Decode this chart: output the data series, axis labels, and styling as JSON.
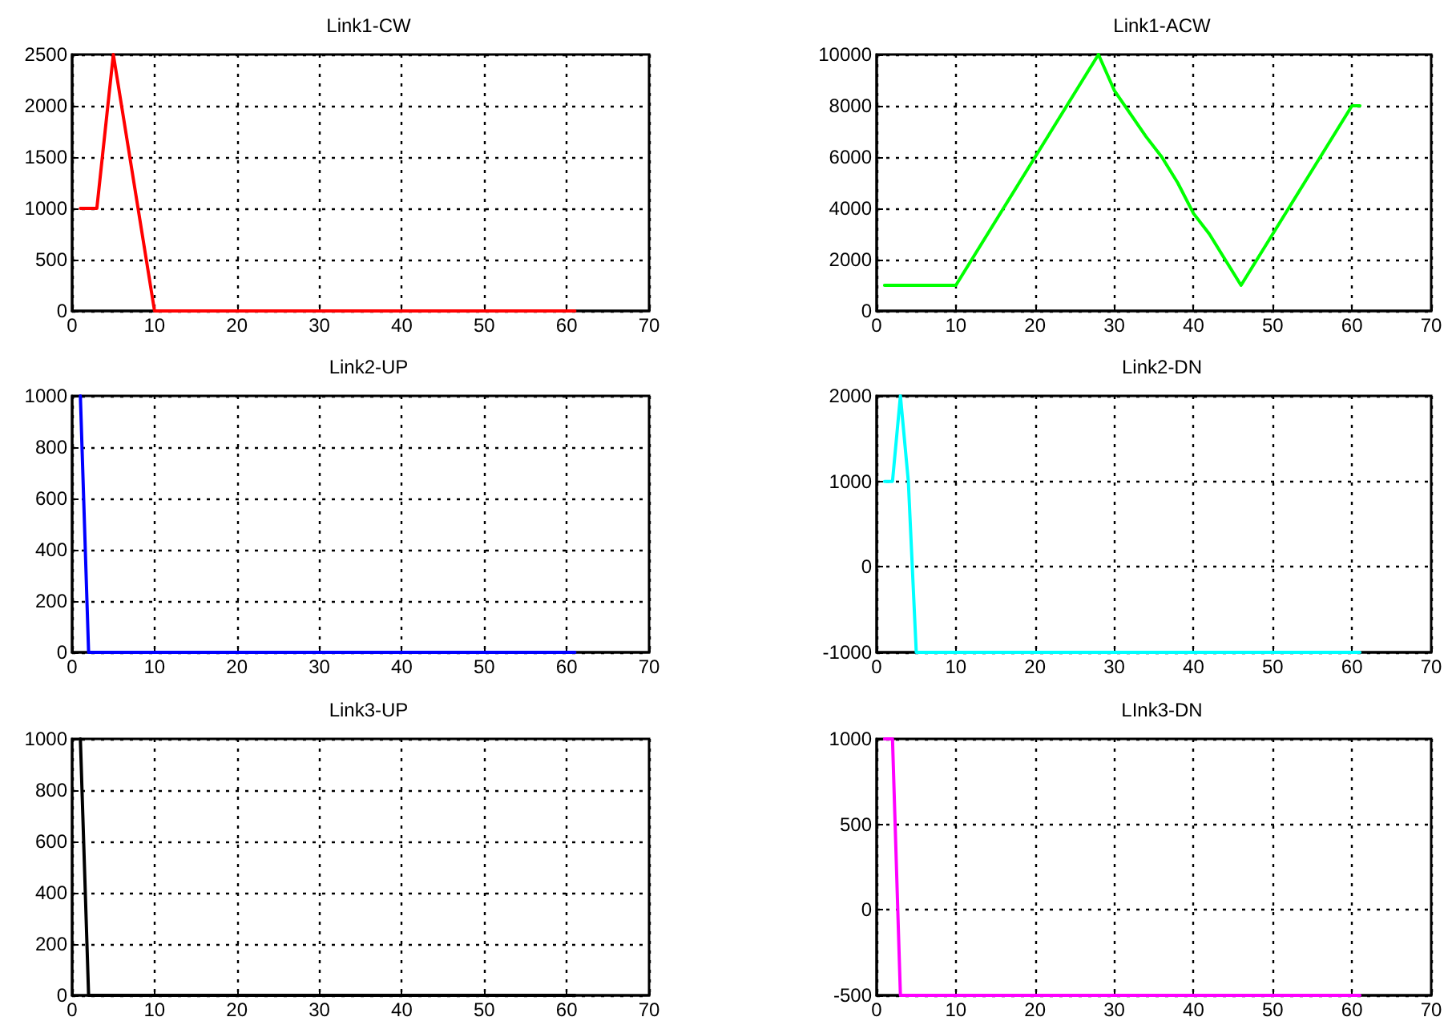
{
  "chart_data": [
    {
      "type": "line",
      "title": "Link1-CW",
      "grid": true,
      "marker": "none",
      "line_style": "solid",
      "xlim": [
        0,
        70
      ],
      "xticks": [
        0,
        10,
        20,
        30,
        40,
        50,
        60,
        70
      ],
      "ylim": [
        0,
        2500
      ],
      "yticks": [
        0,
        500,
        1000,
        1500,
        2000,
        2500
      ],
      "series": [
        {
          "color": "#ff0000",
          "x": [
            1,
            3,
            5,
            6,
            7,
            8,
            9,
            10,
            61
          ],
          "values": [
            1000,
            1000,
            2500,
            2000,
            1500,
            1000,
            500,
            0,
            0
          ]
        }
      ]
    },
    {
      "type": "line",
      "title": "Link1-ACW",
      "grid": true,
      "marker": "none",
      "line_style": "solid",
      "xlim": [
        0,
        70
      ],
      "xticks": [
        0,
        10,
        20,
        30,
        40,
        50,
        60,
        70
      ],
      "ylim": [
        0,
        10000
      ],
      "yticks": [
        0,
        2000,
        4000,
        6000,
        8000,
        10000
      ],
      "series": [
        {
          "color": "#00ff00",
          "x": [
            1,
            10,
            11,
            13,
            15,
            16,
            18,
            20,
            22,
            24,
            26,
            28,
            30,
            32,
            34,
            36,
            38,
            40,
            42,
            43,
            45,
            46,
            48,
            50,
            52,
            54,
            56,
            58,
            60,
            61
          ],
          "values": [
            1000,
            1000,
            1500,
            2500,
            3500,
            4000,
            5000,
            6000,
            7000,
            8000,
            9000,
            10000,
            8600,
            7700,
            6800,
            6000,
            5000,
            3800,
            3000,
            2500,
            1500,
            1000,
            2000,
            3000,
            4000,
            5000,
            6000,
            7000,
            8000,
            8000
          ]
        }
      ]
    },
    {
      "type": "line",
      "title": "Link2-UP",
      "grid": true,
      "marker": "none",
      "line_style": "solid",
      "xlim": [
        0,
        70
      ],
      "xticks": [
        0,
        10,
        20,
        30,
        40,
        50,
        60,
        70
      ],
      "ylim": [
        0,
        1000
      ],
      "yticks": [
        0,
        200,
        400,
        600,
        800,
        1000
      ],
      "series": [
        {
          "color": "#0000ff",
          "x": [
            1,
            2,
            61
          ],
          "values": [
            1000,
            0,
            0
          ]
        }
      ]
    },
    {
      "type": "line",
      "title": "Link2-DN",
      "grid": true,
      "marker": "none",
      "line_style": "solid",
      "xlim": [
        0,
        70
      ],
      "xticks": [
        0,
        10,
        20,
        30,
        40,
        50,
        60,
        70
      ],
      "ylim": [
        -1000,
        2000
      ],
      "yticks": [
        -1000,
        0,
        1000,
        2000
      ],
      "series": [
        {
          "color": "#00ffff",
          "x": [
            1,
            2,
            3,
            4,
            5,
            61
          ],
          "values": [
            1000,
            1000,
            2000,
            1000,
            -1000,
            -1000
          ]
        }
      ]
    },
    {
      "type": "line",
      "title": "Link3-UP",
      "grid": true,
      "marker": "none",
      "line_style": "solid",
      "xlim": [
        0,
        70
      ],
      "xticks": [
        0,
        10,
        20,
        30,
        40,
        50,
        60,
        70
      ],
      "ylim": [
        0,
        1000
      ],
      "yticks": [
        0,
        200,
        400,
        600,
        800,
        1000
      ],
      "series": [
        {
          "color": "#000000",
          "x": [
            1,
            2,
            61
          ],
          "values": [
            1000,
            0,
            0
          ]
        }
      ]
    },
    {
      "type": "line",
      "title": "LInk3-DN",
      "grid": true,
      "marker": "none",
      "line_style": "solid",
      "xlim": [
        0,
        70
      ],
      "xticks": [
        0,
        10,
        20,
        30,
        40,
        50,
        60,
        70
      ],
      "ylim": [
        -500,
        1000
      ],
      "yticks": [
        -500,
        0,
        500,
        1000
      ],
      "series": [
        {
          "color": "#ff00ff",
          "x": [
            1,
            2,
            3,
            61
          ],
          "values": [
            1000,
            1000,
            -500,
            -500
          ]
        }
      ]
    }
  ]
}
